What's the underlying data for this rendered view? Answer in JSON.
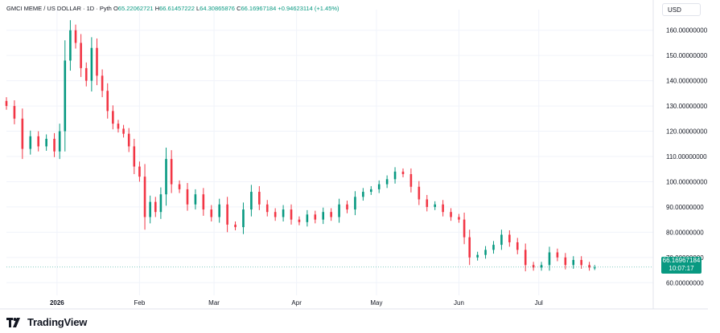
{
  "legend": {
    "name": "GMCI MEME / US DOLLAR · 1D · Pyth",
    "o_label": "O",
    "o_value": "65.22062721",
    "h_label": "H",
    "h_value": "66.61457222",
    "l_label": "L",
    "l_value": "64.30865876",
    "c_label": "C",
    "c_value": "66.16967184",
    "change": "+0.94623114 (+1.45%)"
  },
  "currency": "USD",
  "price_tag": {
    "price": "66.16967184",
    "countdown": "10:07:17"
  },
  "brand": "TradingView",
  "colors": {
    "up": "#089981",
    "down": "#f23645",
    "grid": "#f0f3fa"
  },
  "chart_data": {
    "type": "candlestick",
    "title": "GMCI MEME / US DOLLAR · 1D · Pyth",
    "ylim": [
      55,
      165
    ],
    "y_ticks": [
      {
        "value": 160,
        "label": "160.00000000"
      },
      {
        "value": 150,
        "label": "150.00000000"
      },
      {
        "value": 140,
        "label": "140.00000000"
      },
      {
        "value": 130,
        "label": "130.00000000"
      },
      {
        "value": 120,
        "label": "120.00000000"
      },
      {
        "value": 110,
        "label": "110.00000000"
      },
      {
        "value": 100,
        "label": "100.00000000"
      },
      {
        "value": 90,
        "label": "90.00000000"
      },
      {
        "value": 80,
        "label": "80.00000000"
      },
      {
        "value": 70,
        "label": "70.00000000"
      },
      {
        "value": 60,
        "label": "60.00000000"
      }
    ],
    "x_ticks": [
      {
        "date": "2026-01-01",
        "label": "2026",
        "bold": true
      },
      {
        "date": "2026-02-01",
        "label": "Feb",
        "bold": false
      },
      {
        "date": "2026-03-01",
        "label": "Mar",
        "bold": false
      },
      {
        "date": "2026-04-01",
        "label": "Apr",
        "bold": false
      },
      {
        "date": "2026-05-01",
        "label": "May",
        "bold": false
      },
      {
        "date": "2026-06-01",
        "label": "Jun",
        "bold": false
      },
      {
        "date": "2026-07-01",
        "label": "Jul",
        "bold": false
      }
    ],
    "x_range": [
      "2025-12-13",
      "2026-08-13"
    ],
    "current_price": 66.16967184,
    "closes": [
      {
        "date": "2025-12-13",
        "close": 130
      },
      {
        "date": "2025-12-16",
        "close": 125
      },
      {
        "date": "2025-12-19",
        "close": 113
      },
      {
        "date": "2025-12-22",
        "close": 118
      },
      {
        "date": "2025-12-25",
        "close": 114
      },
      {
        "date": "2025-12-28",
        "close": 117
      },
      {
        "date": "2025-12-31",
        "close": 112
      },
      {
        "date": "2026-01-02",
        "close": 120
      },
      {
        "date": "2026-01-04",
        "close": 148
      },
      {
        "date": "2026-01-06",
        "close": 160
      },
      {
        "date": "2026-01-08",
        "close": 155
      },
      {
        "date": "2026-01-10",
        "close": 145
      },
      {
        "date": "2026-01-12",
        "close": 140
      },
      {
        "date": "2026-01-14",
        "close": 153
      },
      {
        "date": "2026-01-16",
        "close": 142
      },
      {
        "date": "2026-01-18",
        "close": 136
      },
      {
        "date": "2026-01-20",
        "close": 128
      },
      {
        "date": "2026-01-22",
        "close": 123
      },
      {
        "date": "2026-01-24",
        "close": 121
      },
      {
        "date": "2026-01-26",
        "close": 119
      },
      {
        "date": "2026-01-28",
        "close": 114
      },
      {
        "date": "2026-01-30",
        "close": 106
      },
      {
        "date": "2026-02-01",
        "close": 102
      },
      {
        "date": "2026-02-03",
        "close": 86
      },
      {
        "date": "2026-02-05",
        "close": 92
      },
      {
        "date": "2026-02-07",
        "close": 88
      },
      {
        "date": "2026-02-09",
        "close": 95
      },
      {
        "date": "2026-02-11",
        "close": 109
      },
      {
        "date": "2026-02-13",
        "close": 99
      },
      {
        "date": "2026-02-16",
        "close": 97
      },
      {
        "date": "2026-02-19",
        "close": 91
      },
      {
        "date": "2026-02-22",
        "close": 95
      },
      {
        "date": "2026-02-25",
        "close": 89
      },
      {
        "date": "2026-02-28",
        "close": 86
      },
      {
        "date": "2026-03-03",
        "close": 91
      },
      {
        "date": "2026-03-06",
        "close": 83
      },
      {
        "date": "2026-03-09",
        "close": 82
      },
      {
        "date": "2026-03-12",
        "close": 89
      },
      {
        "date": "2026-03-15",
        "close": 96
      },
      {
        "date": "2026-03-18",
        "close": 91
      },
      {
        "date": "2026-03-21",
        "close": 88
      },
      {
        "date": "2026-03-24",
        "close": 86
      },
      {
        "date": "2026-03-27",
        "close": 89
      },
      {
        "date": "2026-03-30",
        "close": 85
      },
      {
        "date": "2026-04-02",
        "close": 84
      },
      {
        "date": "2026-04-05",
        "close": 87
      },
      {
        "date": "2026-04-08",
        "close": 85
      },
      {
        "date": "2026-04-11",
        "close": 88
      },
      {
        "date": "2026-04-14",
        "close": 86
      },
      {
        "date": "2026-04-17",
        "close": 91
      },
      {
        "date": "2026-04-20",
        "close": 89
      },
      {
        "date": "2026-04-23",
        "close": 94
      },
      {
        "date": "2026-04-26",
        "close": 96
      },
      {
        "date": "2026-04-29",
        "close": 97
      },
      {
        "date": "2026-05-02",
        "close": 99
      },
      {
        "date": "2026-05-05",
        "close": 101
      },
      {
        "date": "2026-05-08",
        "close": 104
      },
      {
        "date": "2026-05-11",
        "close": 103
      },
      {
        "date": "2026-05-14",
        "close": 98
      },
      {
        "date": "2026-05-17",
        "close": 93
      },
      {
        "date": "2026-05-20",
        "close": 90
      },
      {
        "date": "2026-05-23",
        "close": 91
      },
      {
        "date": "2026-05-26",
        "close": 88
      },
      {
        "date": "2026-05-29",
        "close": 86
      },
      {
        "date": "2026-06-01",
        "close": 85
      },
      {
        "date": "2026-06-03",
        "close": 78
      },
      {
        "date": "2026-06-05",
        "close": 70
      },
      {
        "date": "2026-06-08",
        "close": 71
      },
      {
        "date": "2026-06-11",
        "close": 73
      },
      {
        "date": "2026-06-14",
        "close": 75
      },
      {
        "date": "2026-06-17",
        "close": 79
      },
      {
        "date": "2026-06-20",
        "close": 76
      },
      {
        "date": "2026-06-23",
        "close": 73
      },
      {
        "date": "2026-06-26",
        "close": 67
      },
      {
        "date": "2026-06-29",
        "close": 66
      },
      {
        "date": "2026-07-02",
        "close": 67
      },
      {
        "date": "2026-07-05",
        "close": 72
      },
      {
        "date": "2026-07-08",
        "close": 70
      },
      {
        "date": "2026-07-11",
        "close": 67
      },
      {
        "date": "2026-07-14",
        "close": 69
      },
      {
        "date": "2026-07-17",
        "close": 67
      },
      {
        "date": "2026-07-20",
        "close": 66
      },
      {
        "date": "2026-07-22",
        "close": 66
      }
    ]
  }
}
